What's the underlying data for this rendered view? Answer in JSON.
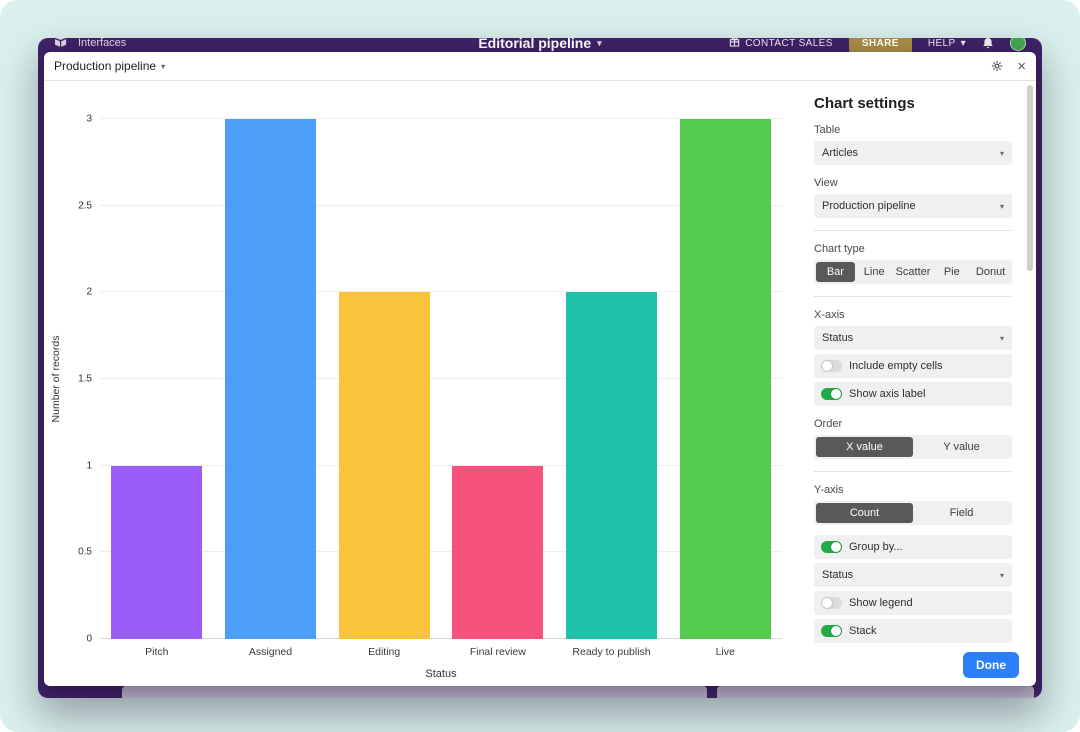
{
  "topbar": {
    "app_label": "Interfaces",
    "title": "Editorial pipeline",
    "contact_sales": "CONTACT SALES",
    "share": "SHARE",
    "help": "HELP"
  },
  "modal": {
    "title": "Production pipeline"
  },
  "chart_data": {
    "type": "bar",
    "categories": [
      "Pitch",
      "Assigned",
      "Editing",
      "Final review",
      "Ready to publish",
      "Live"
    ],
    "values": [
      1,
      3,
      2,
      1,
      2,
      3
    ],
    "bar_colors": [
      "#9c5cf7",
      "#4d9ef8",
      "#f9c33c",
      "#f6527b",
      "#21c0ab",
      "#55cb4e"
    ],
    "title": "",
    "xlabel": "Status",
    "ylabel": "Number of records",
    "ylim": [
      0,
      3
    ],
    "yticks": [
      0,
      0.5,
      1,
      1.5,
      2,
      2.5,
      3
    ],
    "grid": true,
    "legend": "off"
  },
  "settings": {
    "title": "Chart settings",
    "table": {
      "label": "Table",
      "value": "Articles"
    },
    "view": {
      "label": "View",
      "value": "Production pipeline"
    },
    "chart_type": {
      "label": "Chart type",
      "options": [
        "Bar",
        "Line",
        "Scatter",
        "Pie",
        "Donut"
      ],
      "selected": "Bar"
    },
    "x_axis": {
      "label": "X-axis",
      "value": "Status",
      "include_empty_cells": {
        "label": "Include empty cells",
        "on": false
      },
      "show_axis_label": {
        "label": "Show axis label",
        "on": true
      }
    },
    "order": {
      "label": "Order",
      "options": [
        "X value",
        "Y value"
      ],
      "selected": "X value"
    },
    "y_axis": {
      "label": "Y-axis",
      "options": [
        "Count",
        "Field"
      ],
      "selected": "Count",
      "group_by": {
        "label": "Group by...",
        "on": true,
        "value": "Status"
      },
      "show_legend": {
        "label": "Show legend",
        "on": false
      },
      "stack": {
        "label": "Stack",
        "on": true
      }
    },
    "done": "Done"
  },
  "colors": {
    "accent_blue": "#2d7ff9",
    "toggle_green": "#23ab47",
    "selected_segment": "#595959",
    "window_purple": "#3f2167",
    "page_mint": "#d9f0ec"
  }
}
